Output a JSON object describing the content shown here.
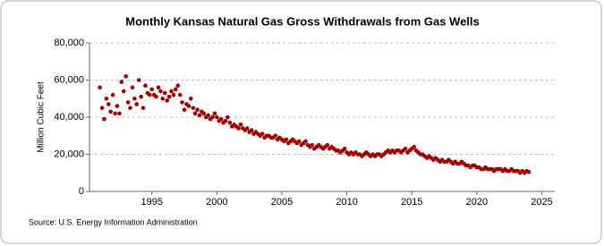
{
  "chart_data": {
    "type": "scatter",
    "title": "Monthly Kansas Natural Gas Gross Withdrawals from Gas Wells",
    "y_label": "Million Cubic Feet",
    "source": "Source: U.S. Energy Information Administration",
    "color": "#a50000",
    "grid": true,
    "xlim": [
      1990.2,
      2026
    ],
    "xticks": [
      1995,
      2000,
      2005,
      2010,
      2015,
      2020,
      2025
    ],
    "ylim": [
      0,
      80000
    ],
    "yticks": [
      0,
      {
        "value": 20000,
        "label": "20,000"
      },
      {
        "value": 40000,
        "label": "40,000"
      },
      {
        "value": 60000,
        "label": "60,000"
      },
      {
        "value": 80000,
        "label": "80,000"
      }
    ],
    "x": [
      1991.0,
      1991.17,
      1991.33,
      1991.5,
      1991.67,
      1991.83,
      1992.0,
      1992.17,
      1992.33,
      1992.5,
      1992.67,
      1992.83,
      1993.0,
      1993.17,
      1993.33,
      1993.5,
      1993.67,
      1993.83,
      1994.0,
      1994.17,
      1994.33,
      1994.5,
      1994.67,
      1994.83,
      1995.0,
      1995.17,
      1995.33,
      1995.5,
      1995.67,
      1995.83,
      1996.0,
      1996.17,
      1996.33,
      1996.5,
      1996.67,
      1996.83,
      1997.0,
      1997.17,
      1997.33,
      1997.5,
      1997.67,
      1997.83,
      1998.0,
      1998.17,
      1998.33,
      1998.5,
      1998.67,
      1998.83,
      1999.0,
      1999.17,
      1999.33,
      1999.5,
      1999.67,
      1999.83,
      2000.0,
      2000.17,
      2000.33,
      2000.5,
      2000.67,
      2000.83,
      2001.0,
      2001.17,
      2001.33,
      2001.5,
      2001.67,
      2001.83,
      2002.0,
      2002.17,
      2002.33,
      2002.5,
      2002.67,
      2002.83,
      2003.0,
      2003.17,
      2003.33,
      2003.5,
      2003.67,
      2003.83,
      2004.0,
      2004.17,
      2004.33,
      2004.5,
      2004.67,
      2004.83,
      2005.0,
      2005.17,
      2005.33,
      2005.5,
      2005.67,
      2005.83,
      2006.0,
      2006.17,
      2006.33,
      2006.5,
      2006.67,
      2006.83,
      2007.0,
      2007.17,
      2007.33,
      2007.5,
      2007.67,
      2007.83,
      2008.0,
      2008.17,
      2008.33,
      2008.5,
      2008.67,
      2008.83,
      2009.0,
      2009.17,
      2009.33,
      2009.5,
      2009.67,
      2009.83,
      2010.0,
      2010.17,
      2010.33,
      2010.5,
      2010.67,
      2010.83,
      2011.0,
      2011.17,
      2011.33,
      2011.5,
      2011.67,
      2011.83,
      2012.0,
      2012.17,
      2012.33,
      2012.5,
      2012.67,
      2012.83,
      2013.0,
      2013.17,
      2013.33,
      2013.5,
      2013.67,
      2013.83,
      2014.0,
      2014.17,
      2014.33,
      2014.5,
      2014.67,
      2014.83,
      2015.0,
      2015.17,
      2015.33,
      2015.5,
      2015.67,
      2015.83,
      2016.0,
      2016.17,
      2016.33,
      2016.5,
      2016.67,
      2016.83,
      2017.0,
      2017.17,
      2017.33,
      2017.5,
      2017.67,
      2017.83,
      2018.0,
      2018.17,
      2018.33,
      2018.5,
      2018.67,
      2018.83,
      2019.0,
      2019.17,
      2019.33,
      2019.5,
      2019.67,
      2019.83,
      2020.0,
      2020.17,
      2020.33,
      2020.5,
      2020.67,
      2020.83,
      2021.0,
      2021.17,
      2021.33,
      2021.5,
      2021.67,
      2021.83,
      2022.0,
      2022.17,
      2022.33,
      2022.5,
      2022.67,
      2022.83,
      2023.0,
      2023.17,
      2023.33,
      2023.5,
      2023.67,
      2023.83,
      2024.0
    ],
    "values": [
      56000,
      45000,
      39000,
      50000,
      47000,
      43000,
      52000,
      42000,
      46000,
      42000,
      59000,
      54000,
      62000,
      48000,
      45000,
      56000,
      50000,
      47000,
      60000,
      51000,
      45000,
      57000,
      53000,
      52000,
      55000,
      52000,
      51000,
      56000,
      54000,
      50000,
      53000,
      49000,
      51000,
      54000,
      52000,
      55000,
      57000,
      52000,
      48000,
      44000,
      47000,
      46000,
      50000,
      45000,
      42000,
      44000,
      41000,
      43000,
      42000,
      40000,
      41000,
      39000,
      40000,
      42000,
      40000,
      38000,
      39000,
      37000,
      38000,
      40000,
      37000,
      35000,
      36000,
      35000,
      34000,
      36000,
      34000,
      33000,
      34000,
      32000,
      33000,
      31000,
      32000,
      31000,
      30000,
      31000,
      29000,
      30000,
      30000,
      29000,
      29000,
      30000,
      28000,
      29000,
      28000,
      27000,
      28000,
      26000,
      27000,
      28000,
      27000,
      26000,
      27000,
      25000,
      26000,
      27000,
      25000,
      24000,
      25000,
      23000,
      24000,
      25000,
      24000,
      23000,
      24000,
      25000,
      23000,
      24000,
      23000,
      22000,
      22000,
      21000,
      22000,
      23000,
      21000,
      20000,
      21000,
      20000,
      21000,
      20000,
      20000,
      19000,
      20000,
      21000,
      20000,
      19000,
      20000,
      19000,
      20000,
      20000,
      19000,
      20000,
      21000,
      22000,
      21000,
      22000,
      21000,
      22000,
      22000,
      21000,
      22000,
      23000,
      21000,
      22000,
      23000,
      24000,
      22000,
      21000,
      20000,
      20000,
      19000,
      18000,
      19000,
      18000,
      17000,
      18000,
      17000,
      16000,
      17000,
      16000,
      16000,
      17000,
      16000,
      15000,
      16000,
      15000,
      15000,
      16000,
      15000,
      14000,
      14000,
      13000,
      14000,
      14000,
      13000,
      13000,
      12000,
      12000,
      13000,
      12000,
      12000,
      12000,
      11000,
      12000,
      12000,
      12000,
      11000,
      12000,
      11000,
      11000,
      12000,
      11000,
      11000,
      11000,
      10000,
      11000,
      10000,
      11000,
      10500
    ]
  }
}
